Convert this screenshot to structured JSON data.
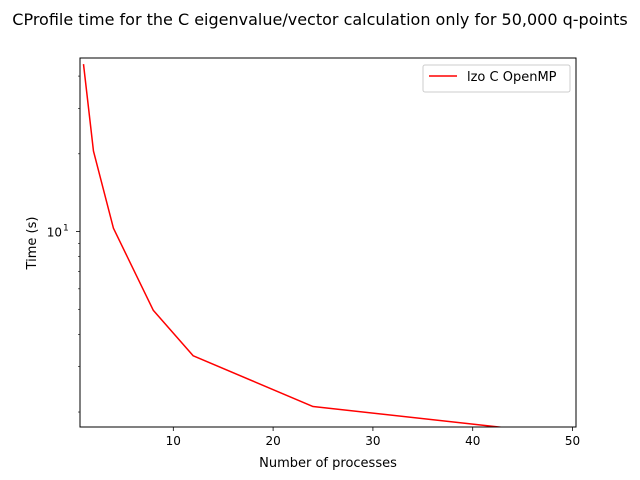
{
  "chart_data": {
    "type": "line",
    "title": "CProfile time for the C eigenvalue/vector calculation only for 50,000 q-points",
    "xlabel": "Number of processes",
    "ylabel": "Time (s)",
    "yscale": "log",
    "xlim": [
      0.65,
      50.35
    ],
    "ylim": [
      1.75,
      47
    ],
    "x_ticks": [
      {
        "value": 10,
        "label": "10"
      },
      {
        "value": 20,
        "label": "20"
      },
      {
        "value": 30,
        "label": "30"
      },
      {
        "value": 40,
        "label": "40"
      },
      {
        "value": 50,
        "label": "50"
      }
    ],
    "y_major_ticks": [
      {
        "value": 10,
        "base": "10",
        "exp": "1"
      }
    ],
    "y_minor_ticks": [
      2,
      3,
      4,
      5,
      6,
      7,
      8,
      9,
      20,
      30,
      40
    ],
    "legend_position": "upper right",
    "grid": false,
    "series": [
      {
        "name": "lzo C OpenMP",
        "color": "#ff0000",
        "x": [
          1,
          2,
          4,
          8,
          12,
          24,
          48
        ],
        "y": [
          44.5,
          20.5,
          10.3,
          4.95,
          3.3,
          2.1,
          1.66
        ]
      }
    ]
  }
}
